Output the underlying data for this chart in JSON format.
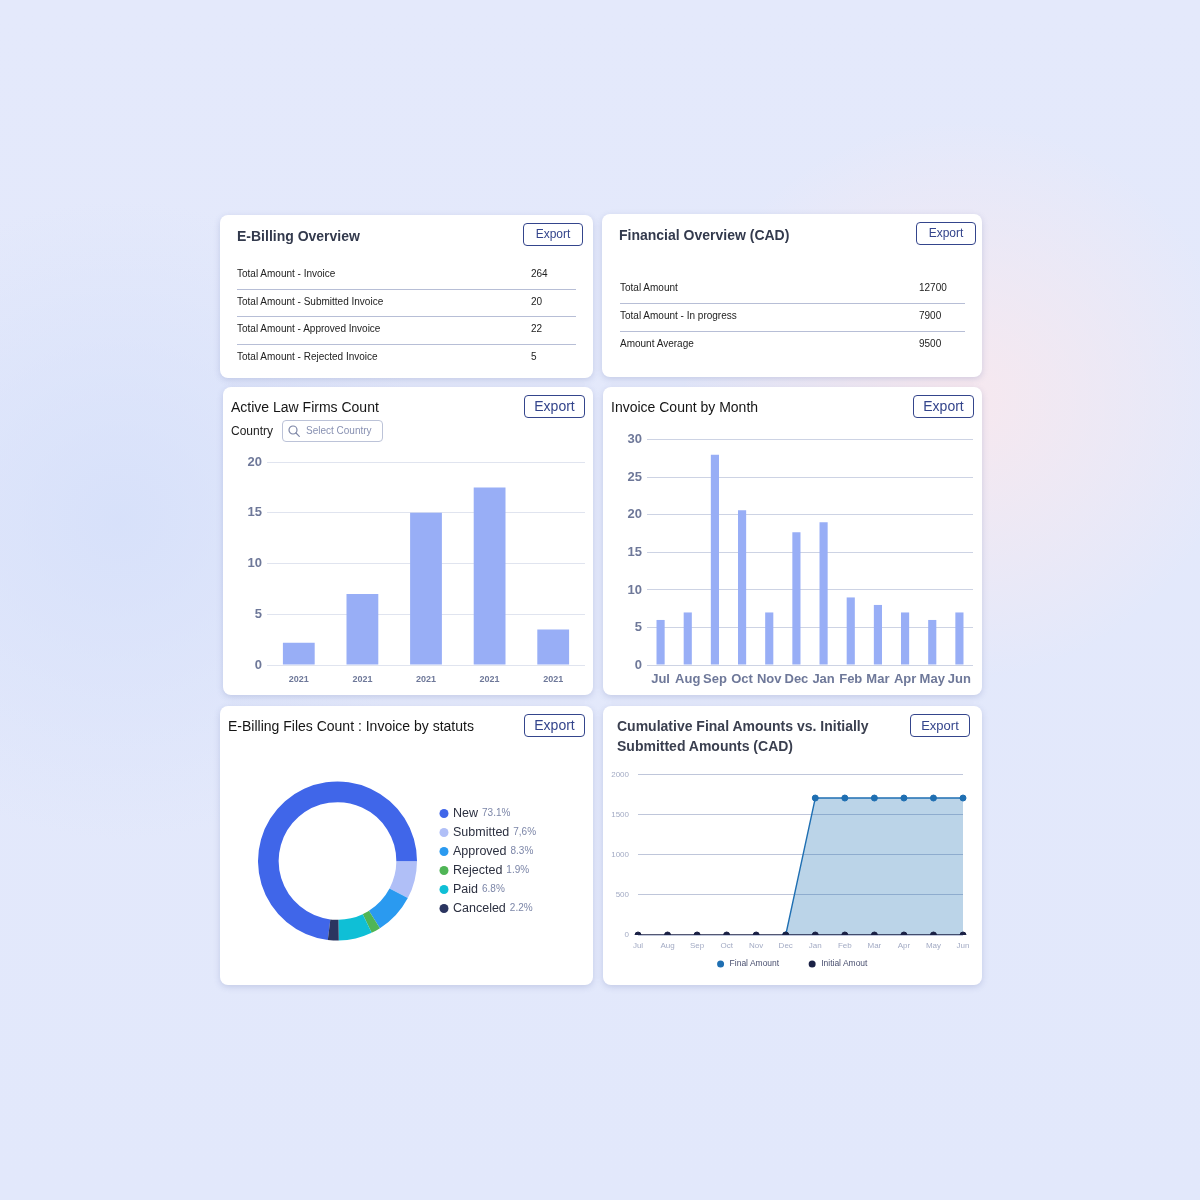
{
  "chart_data": [
    {
      "type": "other",
      "title": "E-Billing Overview",
      "annotations": [
        "Export"
      ],
      "categories": [
        "Total Amount - Invoice",
        "Total Amount - Submitted Invoice",
        "Total Amount - Approved Invoice",
        "Total Amount - Rejected Invoice"
      ],
      "values": [
        264,
        20,
        22,
        5
      ],
      "data_labels": true
    },
    {
      "type": "other",
      "title": "Financial Overview (CAD)",
      "annotations": [
        "Export"
      ],
      "categories": [
        "Total Amount",
        "Total Amount - In progress",
        "Amount Average"
      ],
      "values": [
        12700,
        7900,
        9500
      ],
      "data_labels": true
    },
    {
      "type": "bar",
      "title": "Active Law Firms Count",
      "annotations": [
        "Export",
        "Country",
        "Select Country"
      ],
      "categories": [
        "2021",
        "2021",
        "2021",
        "2021",
        "2021"
      ],
      "values": [
        2.2,
        7,
        15,
        17.5,
        3.5
      ],
      "color": "#98aef6",
      "ylim": [
        0,
        20
      ],
      "yticks": [
        0,
        5,
        10,
        15,
        20
      ],
      "grid": "y"
    },
    {
      "type": "bar",
      "title": "Invoice Count by Month",
      "annotations": [
        "Export"
      ],
      "categories": [
        "Jul",
        "Aug",
        "Sep",
        "Oct",
        "Nov",
        "Dec",
        "Jan",
        "Feb",
        "Mar",
        "Apr",
        "May",
        "Jun"
      ],
      "values": [
        6,
        7,
        28,
        20.6,
        7,
        17.7,
        19,
        9,
        8,
        7,
        6,
        7
      ],
      "color": "#98aef6",
      "ylim": [
        0,
        30
      ],
      "yticks": [
        0,
        5,
        10,
        15,
        20,
        25,
        30
      ],
      "grid": "y"
    },
    {
      "type": "donut",
      "title": "E-Billing Files Count : Invoice by statuts",
      "annotations": [
        "Export"
      ],
      "categories": [
        "New",
        "Submitted",
        "Approved",
        "Rejected",
        "Paid",
        "Canceled"
      ],
      "values": [
        73.1,
        7.6,
        8.3,
        1.9,
        6.8,
        2.2
      ],
      "value_labels": [
        "73.1%",
        "7,6%",
        "8.3%",
        "1.9%",
        "6.8%",
        "2.2%"
      ],
      "colors": [
        "#4066e9",
        "#b0bff7",
        "#2a9af0",
        "#4fb556",
        "#0fbfd6",
        "#2b3560"
      ],
      "legend": "right"
    },
    {
      "type": "line",
      "title": "Cumulative Final Amounts vs. Initially Submitted Amounts (CAD)",
      "annotations": [
        "Export"
      ],
      "categories": [
        "Jul",
        "Aug",
        "Sep",
        "Oct",
        "Nov",
        "Dec",
        "Jan",
        "Feb",
        "Mar",
        "Apr",
        "May",
        "Jun"
      ],
      "series": [
        {
          "name": "Final Amount",
          "type": "area",
          "color": "#1f6fb2",
          "values": [
            null,
            null,
            null,
            null,
            null,
            0,
            1710,
            1710,
            1710,
            1710,
            1710,
            1710
          ]
        },
        {
          "name": "Initial Amout",
          "color": "#1b2145",
          "values": [
            0,
            0,
            0,
            0,
            0,
            0,
            0,
            0,
            0,
            0,
            0,
            0
          ]
        }
      ],
      "ylim": [
        0,
        2000
      ],
      "yticks": [
        0,
        500,
        1000,
        1500,
        2000
      ],
      "grid": "y",
      "legend": "bottom",
      "marker": "circle"
    }
  ]
}
